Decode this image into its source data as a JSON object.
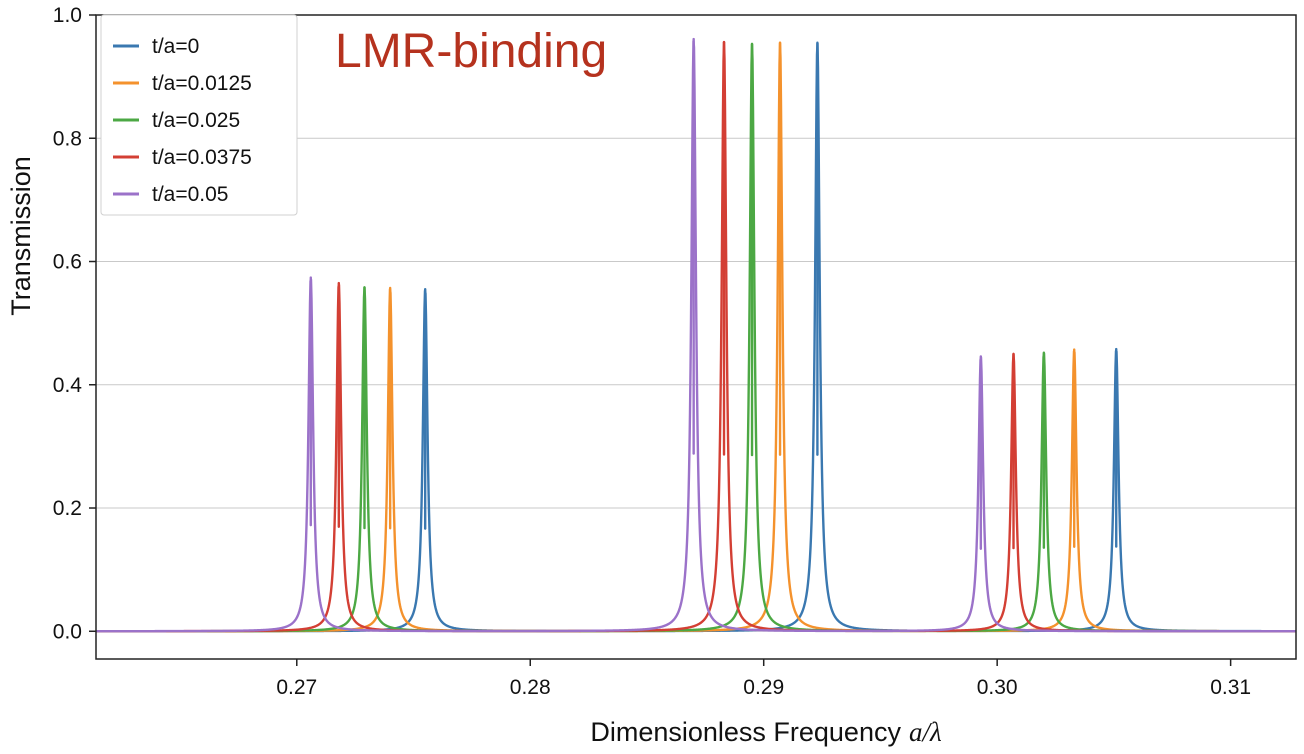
{
  "chart_data": {
    "type": "line",
    "title": "",
    "annotation": "LMR-binding",
    "annotation_color": "#b5321e",
    "xlabel": "Dimensionless Frequency",
    "xlabel_math": "a/λ",
    "ylabel": "Transmission",
    "xlim": [
      0.2614,
      0.3128
    ],
    "ylim": [
      -0.045,
      1.0
    ],
    "xticks": [
      0.27,
      0.28,
      0.29,
      0.3,
      0.31
    ],
    "xtick_labels": [
      "0.27",
      "0.28",
      "0.29",
      "0.30",
      "0.31"
    ],
    "yticks": [
      0.0,
      0.2,
      0.4,
      0.6,
      0.8,
      1.0
    ],
    "ytick_labels": [
      "0.0",
      "0.2",
      "0.4",
      "0.6",
      "0.8",
      "1.0"
    ],
    "grid": "horizontal",
    "legend_position": "top-left",
    "peak_width": 0.00012,
    "series": [
      {
        "name": "t/a=0",
        "color": "#3a78b0",
        "peaks": [
          {
            "x": 0.2755,
            "y": 0.555
          },
          {
            "x": 0.2923,
            "y": 0.955
          },
          {
            "x": 0.3051,
            "y": 0.458
          }
        ]
      },
      {
        "name": "t/a=0.0125",
        "color": "#f4922d",
        "peaks": [
          {
            "x": 0.274,
            "y": 0.557
          },
          {
            "x": 0.2907,
            "y": 0.955
          },
          {
            "x": 0.3033,
            "y": 0.457
          }
        ]
      },
      {
        "name": "t/a=0.025",
        "color": "#4ca844",
        "peaks": [
          {
            "x": 0.2729,
            "y": 0.558
          },
          {
            "x": 0.2895,
            "y": 0.953
          },
          {
            "x": 0.302,
            "y": 0.452
          }
        ]
      },
      {
        "name": "t/a=0.0375",
        "color": "#d33f34",
        "peaks": [
          {
            "x": 0.2718,
            "y": 0.565
          },
          {
            "x": 0.2883,
            "y": 0.956
          },
          {
            "x": 0.3007,
            "y": 0.45
          }
        ]
      },
      {
        "name": "t/a=0.05",
        "color": "#9b72c9",
        "peaks": [
          {
            "x": 0.2706,
            "y": 0.574
          },
          {
            "x": 0.287,
            "y": 0.961
          },
          {
            "x": 0.2993,
            "y": 0.446
          }
        ]
      }
    ]
  }
}
